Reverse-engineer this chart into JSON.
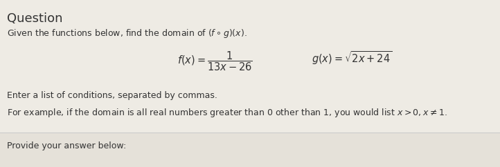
{
  "title": "Question",
  "line1": "Given the functions below, find the domain of $(f \\circ g)(x)$.",
  "formula_f": "$f(x) = \\dfrac{1}{13x-26}$",
  "formula_g": "$g(x) = \\sqrt{2x+24}$",
  "line3": "Enter a list of conditions, separated by commas.",
  "line4": "For example, if the domain is all real numbers greater than $0$ other than $1$, you would list $x > 0, x \\neq 1$.",
  "line5": "Provide your answer below:",
  "bg_color": "#eeebe4",
  "answer_bg_color": "#e5e1d9",
  "title_color": "#333333",
  "text_color": "#333333",
  "separator_color": "#cccccc",
  "title_fontsize": 13,
  "text_fontsize": 9.0,
  "formula_fontsize": 10.5
}
